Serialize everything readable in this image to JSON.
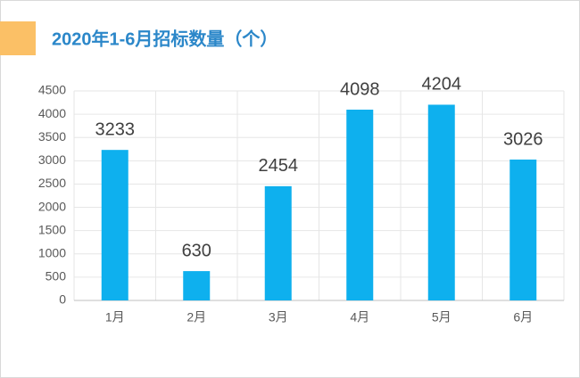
{
  "chart_data": {
    "type": "bar",
    "title": "2020年1-6月招标数量（个）",
    "categories": [
      "1月",
      "2月",
      "3月",
      "4月",
      "5月",
      "6月"
    ],
    "values": [
      3233,
      630,
      2454,
      4098,
      4204,
      3026
    ],
    "color": "#0eb0ee",
    "ylim": [
      0,
      4500
    ],
    "yticks": [
      0,
      500,
      1000,
      1500,
      2000,
      2500,
      3000,
      3500,
      4000,
      4500
    ],
    "grid": true
  }
}
